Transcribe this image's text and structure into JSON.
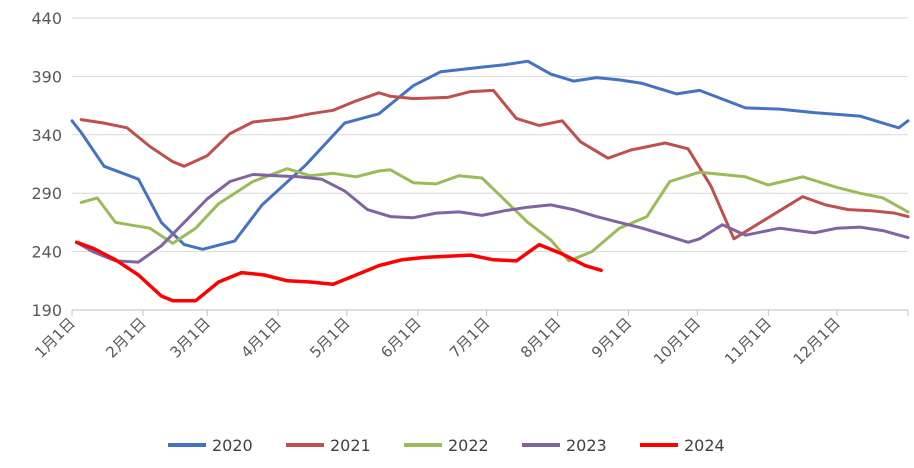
{
  "chart_data": {
    "type": "line",
    "ylim": [
      190,
      440
    ],
    "yticks": [
      "190",
      "240",
      "290",
      "340",
      "390",
      "440"
    ],
    "x_ticks": [
      "1月1日",
      "2月1日",
      "3月1日",
      "4月1日",
      "5月1日",
      "6月1日",
      "7月1日",
      "8月1日",
      "9月1日",
      "10月1日",
      "11月1日",
      "12月1日"
    ],
    "x_positions": [
      1,
      32,
      60,
      91,
      121,
      152,
      182,
      213,
      244,
      274,
      305,
      335
    ],
    "xlim": [
      1,
      366
    ],
    "grid": "horizontal",
    "legend_position": "bottom",
    "series": [
      {
        "name": "2020",
        "color": "#4472C4",
        "points": [
          [
            1,
            352
          ],
          [
            5,
            342
          ],
          [
            15,
            313
          ],
          [
            30,
            302
          ],
          [
            40,
            265
          ],
          [
            50,
            246
          ],
          [
            58,
            242
          ],
          [
            72,
            249
          ],
          [
            84,
            280
          ],
          [
            103,
            314
          ],
          [
            120,
            350
          ],
          [
            135,
            358
          ],
          [
            150,
            382
          ],
          [
            162,
            394
          ],
          [
            180,
            398
          ],
          [
            190,
            400
          ],
          [
            200,
            403
          ],
          [
            210,
            392
          ],
          [
            220,
            386
          ],
          [
            230,
            389
          ],
          [
            240,
            387
          ],
          [
            250,
            384
          ],
          [
            265,
            375
          ],
          [
            275,
            378
          ],
          [
            295,
            363
          ],
          [
            310,
            362
          ],
          [
            325,
            359
          ],
          [
            345,
            356
          ],
          [
            355,
            350
          ],
          [
            362,
            346
          ],
          [
            366,
            352
          ]
        ]
      },
      {
        "name": "2021",
        "color": "#C0504D",
        "points": [
          [
            5,
            353
          ],
          [
            15,
            350
          ],
          [
            25,
            346
          ],
          [
            35,
            330
          ],
          [
            45,
            317
          ],
          [
            50,
            313
          ],
          [
            60,
            322
          ],
          [
            70,
            341
          ],
          [
            80,
            351
          ],
          [
            95,
            354
          ],
          [
            105,
            358
          ],
          [
            115,
            361
          ],
          [
            125,
            369
          ],
          [
            135,
            376
          ],
          [
            140,
            373
          ],
          [
            150,
            371
          ],
          [
            165,
            372
          ],
          [
            175,
            377
          ],
          [
            185,
            378
          ],
          [
            195,
            354
          ],
          [
            205,
            348
          ],
          [
            215,
            352
          ],
          [
            223,
            334
          ],
          [
            235,
            320
          ],
          [
            245,
            327
          ],
          [
            260,
            333
          ],
          [
            270,
            328
          ],
          [
            280,
            296
          ],
          [
            290,
            251
          ],
          [
            300,
            263
          ],
          [
            310,
            275
          ],
          [
            320,
            287
          ],
          [
            330,
            280
          ],
          [
            340,
            276
          ],
          [
            350,
            275
          ],
          [
            360,
            273
          ],
          [
            366,
            270
          ]
        ]
      },
      {
        "name": "2022",
        "color": "#9BBB59",
        "points": [
          [
            5,
            282
          ],
          [
            12,
            286
          ],
          [
            20,
            265
          ],
          [
            35,
            260
          ],
          [
            45,
            247
          ],
          [
            55,
            260
          ],
          [
            65,
            281
          ],
          [
            80,
            300
          ],
          [
            95,
            311
          ],
          [
            105,
            305
          ],
          [
            115,
            307
          ],
          [
            125,
            304
          ],
          [
            135,
            309
          ],
          [
            140,
            310
          ],
          [
            150,
            299
          ],
          [
            160,
            298
          ],
          [
            170,
            305
          ],
          [
            180,
            303
          ],
          [
            190,
            284
          ],
          [
            200,
            265
          ],
          [
            210,
            250
          ],
          [
            218,
            232
          ],
          [
            228,
            240
          ],
          [
            240,
            260
          ],
          [
            252,
            270
          ],
          [
            262,
            300
          ],
          [
            275,
            308
          ],
          [
            285,
            306
          ],
          [
            295,
            304
          ],
          [
            305,
            297
          ],
          [
            320,
            304
          ],
          [
            335,
            295
          ],
          [
            345,
            290
          ],
          [
            355,
            286
          ],
          [
            366,
            274
          ]
        ]
      },
      {
        "name": "2023",
        "color": "#8064A2",
        "points": [
          [
            3,
            248
          ],
          [
            10,
            240
          ],
          [
            20,
            232
          ],
          [
            30,
            231
          ],
          [
            40,
            245
          ],
          [
            50,
            265
          ],
          [
            60,
            285
          ],
          [
            70,
            300
          ],
          [
            80,
            306
          ],
          [
            90,
            305
          ],
          [
            100,
            304
          ],
          [
            110,
            302
          ],
          [
            120,
            292
          ],
          [
            130,
            276
          ],
          [
            140,
            270
          ],
          [
            150,
            269
          ],
          [
            160,
            273
          ],
          [
            170,
            274
          ],
          [
            180,
            271
          ],
          [
            190,
            275
          ],
          [
            200,
            278
          ],
          [
            210,
            280
          ],
          [
            220,
            276
          ],
          [
            230,
            270
          ],
          [
            240,
            265
          ],
          [
            250,
            260
          ],
          [
            260,
            254
          ],
          [
            270,
            248
          ],
          [
            275,
            251
          ],
          [
            285,
            263
          ],
          [
            295,
            254
          ],
          [
            310,
            260
          ],
          [
            325,
            256
          ],
          [
            335,
            260
          ],
          [
            345,
            261
          ],
          [
            355,
            258
          ],
          [
            366,
            252
          ]
        ]
      },
      {
        "name": "2024",
        "color": "#FF0000",
        "points": [
          [
            3,
            248
          ],
          [
            10,
            243
          ],
          [
            20,
            233
          ],
          [
            30,
            220
          ],
          [
            40,
            202
          ],
          [
            45,
            198
          ],
          [
            55,
            198
          ],
          [
            65,
            214
          ],
          [
            75,
            222
          ],
          [
            85,
            220
          ],
          [
            95,
            215
          ],
          [
            105,
            214
          ],
          [
            115,
            212
          ],
          [
            125,
            220
          ],
          [
            135,
            228
          ],
          [
            145,
            233
          ],
          [
            155,
            235
          ],
          [
            165,
            236
          ],
          [
            175,
            237
          ],
          [
            185,
            233
          ],
          [
            195,
            232
          ],
          [
            205,
            246
          ],
          [
            215,
            238
          ],
          [
            225,
            228
          ],
          [
            232,
            224
          ]
        ]
      }
    ]
  }
}
